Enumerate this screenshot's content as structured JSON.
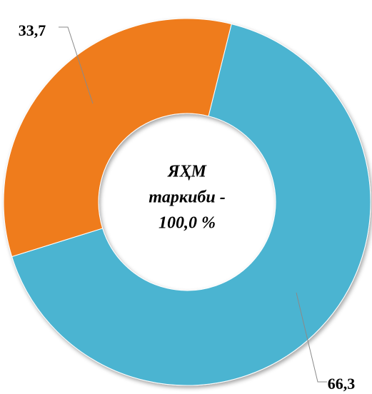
{
  "chart_data": {
    "type": "donut",
    "categories": [
      null,
      null
    ],
    "values": [
      66.3,
      33.7
    ],
    "value_labels": [
      "66,3",
      "33,7"
    ],
    "colors": [
      "#4bb4d1",
      "#ef7b1b"
    ],
    "center_text": [
      "ЯҲМ",
      "таркиби -",
      "100,0 %"
    ]
  }
}
